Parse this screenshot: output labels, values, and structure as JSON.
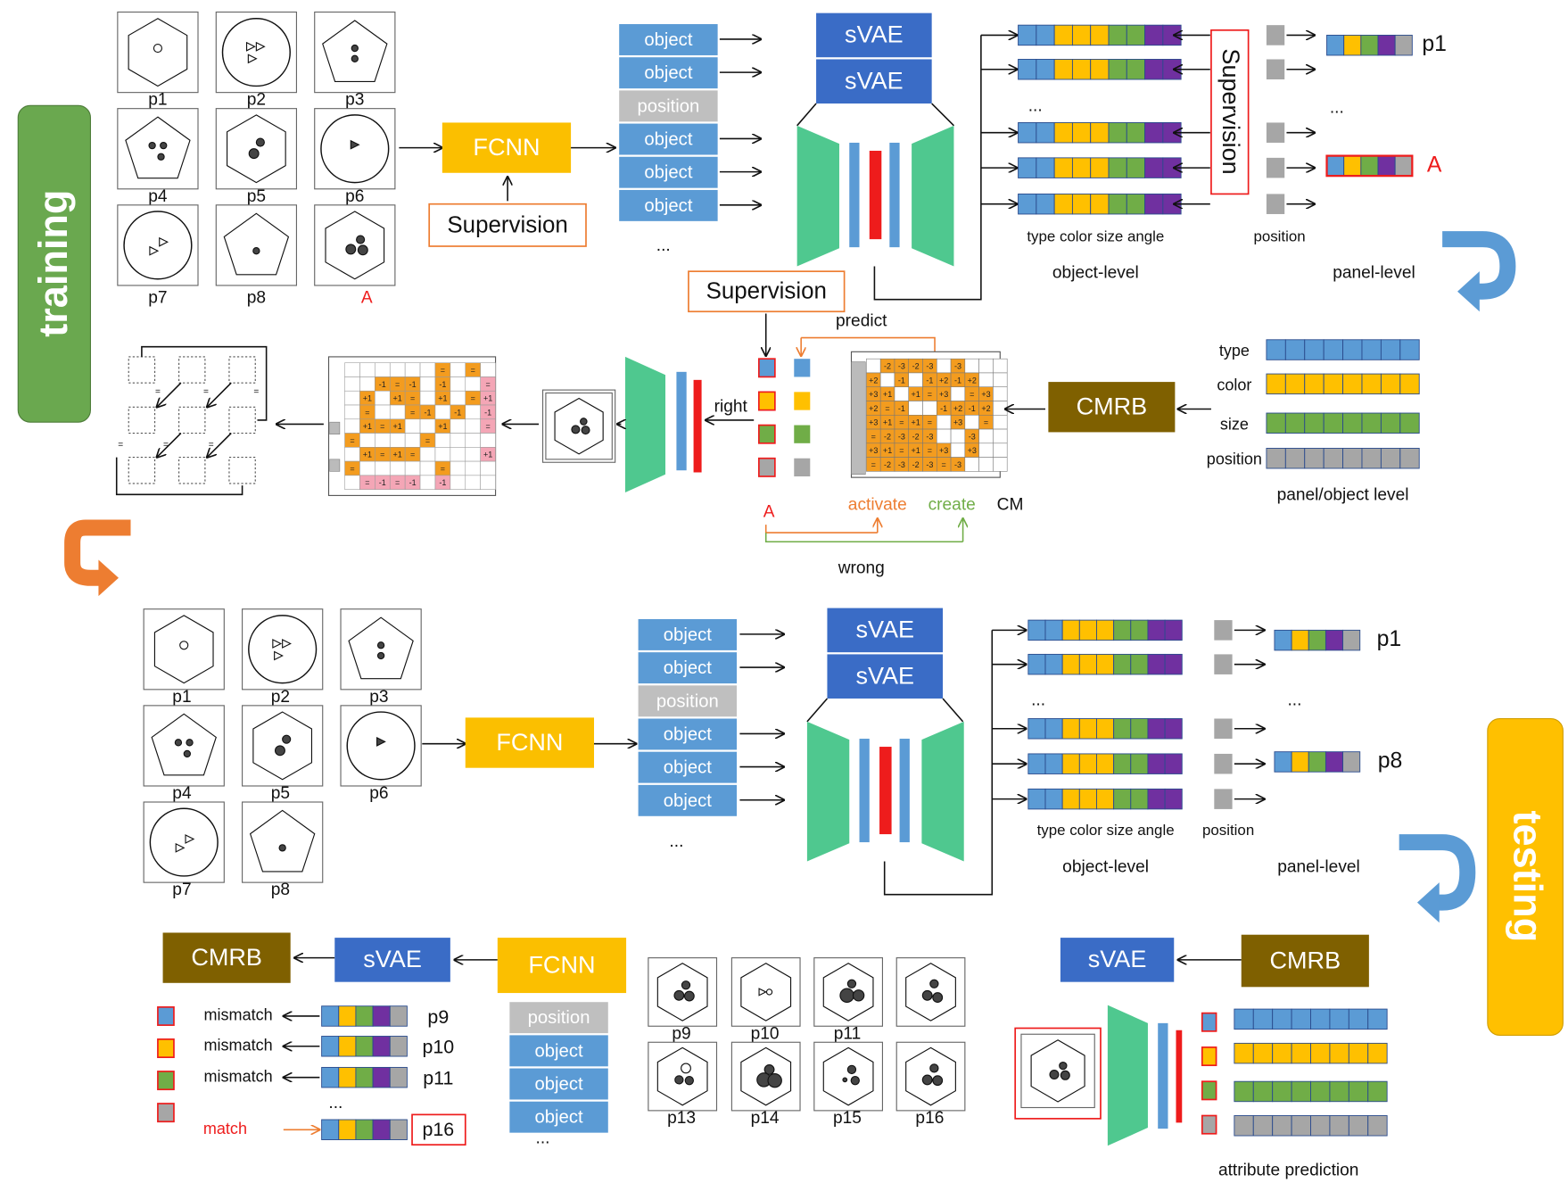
{
  "training": {
    "label": "training",
    "panels": [
      "p1",
      "p2",
      "p3",
      "p4",
      "p5",
      "p6",
      "p7",
      "p8",
      "A"
    ],
    "fcnn": "FCNN",
    "fcnn_supervision": "Supervision",
    "slots": [
      "object",
      "object",
      "position",
      "object",
      "object",
      "object"
    ],
    "slots_more": "...",
    "svae": [
      "sVAE",
      "sVAE"
    ],
    "vectors_more": "...",
    "vector_supervision": "Supervision",
    "panel_vectors": [
      "p1",
      "A"
    ],
    "panel_vectors_more": "...",
    "attribute_caption": "type color size angle",
    "position_caption": "position",
    "object_level": "object-level",
    "panel_level": "panel-level",
    "cm_supervision": "Supervision",
    "predict": "predict",
    "right": "right",
    "wrong": "wrong",
    "answer": "A",
    "activate": "activate",
    "create": "create",
    "cm": "CM",
    "cm_matrix": [
      [
        null,
        "-2",
        "-3",
        "-2",
        "-3",
        null,
        "-3",
        null,
        null,
        null
      ],
      [
        "+2",
        null,
        "-1",
        null,
        "-1",
        "+2",
        "-1",
        "+2",
        null,
        null
      ],
      [
        "+3",
        "+1",
        null,
        "+1",
        "=",
        "+3",
        null,
        "=",
        "+3",
        null
      ],
      [
        "+2",
        "=",
        "-1",
        null,
        null,
        "-1",
        "+2",
        "-1",
        "+2",
        null
      ],
      [
        "+3",
        "+1",
        "=",
        "+1",
        "=",
        null,
        "+3",
        null,
        "=",
        null
      ],
      [
        "=",
        "-2",
        "-3",
        "-2",
        "-3",
        null,
        null,
        "-3",
        null,
        null
      ],
      [
        "+3",
        "+1",
        "=",
        "+1",
        "=",
        "+3",
        null,
        "+3",
        null,
        null
      ],
      [
        "=",
        "-2",
        "-3",
        "-2",
        "-3",
        "=",
        "-3",
        null,
        null,
        null
      ]
    ],
    "rule_matrix": [
      [
        null,
        null,
        null,
        null,
        null,
        null,
        "=",
        null,
        "=",
        null
      ],
      [
        null,
        null,
        "-1",
        "=",
        "-1",
        null,
        "-1",
        null,
        null,
        "="
      ],
      [
        null,
        "+1",
        null,
        "+1",
        "=",
        null,
        "+1",
        null,
        "=",
        "+1"
      ],
      [
        null,
        "=",
        null,
        null,
        "=",
        "-1",
        null,
        "-1",
        null,
        "-1"
      ],
      [
        null,
        "+1",
        "=",
        "+1",
        null,
        null,
        "+1",
        null,
        null,
        "="
      ],
      [
        "=",
        null,
        null,
        null,
        null,
        "=",
        null,
        null,
        null,
        null
      ],
      [
        null,
        "+1",
        "=",
        "+1",
        "=",
        null,
        null,
        null,
        null,
        "+1"
      ],
      [
        "=",
        null,
        null,
        null,
        null,
        null,
        "=",
        null,
        null,
        null
      ],
      [
        null,
        "=",
        "-1",
        "=",
        "-1",
        null,
        "-1",
        null,
        null,
        null
      ]
    ],
    "rule_relations": [
      "=",
      "=",
      "=",
      "=",
      "=",
      "="
    ],
    "cmrb": "CMRB",
    "attributes": [
      "type",
      "color",
      "size",
      "position"
    ],
    "attributes_caption": "panel/object level"
  },
  "testing": {
    "label": "testing",
    "panels": [
      "p1",
      "p2",
      "p3",
      "p4",
      "p5",
      "p6",
      "p7",
      "p8"
    ],
    "fcnn": "FCNN",
    "slots": [
      "object",
      "object",
      "position",
      "object",
      "object",
      "object"
    ],
    "slots_more": "...",
    "svae": [
      "sVAE",
      "sVAE"
    ],
    "vectors_more": "...",
    "panel_vectors": [
      "p1",
      "p8"
    ],
    "panel_vectors_more": "...",
    "attribute_caption": "type color size angle",
    "position_caption": "position",
    "object_level": "object-level",
    "panel_level": "panel-level",
    "match": {
      "cmrb": "CMRB",
      "svae": "sVAE",
      "fcnn": "FCNN",
      "slots": [
        "position",
        "object",
        "object",
        "object"
      ],
      "slots_more": "...",
      "results": [
        "mismatch",
        "mismatch",
        "mismatch",
        "match"
      ],
      "candidates": [
        "p9",
        "p10",
        "p11",
        "p16"
      ],
      "candidates_more": "..."
    },
    "choices": [
      "p9",
      "p10",
      "p11",
      null,
      "p13",
      "p14",
      "p15",
      "p16"
    ],
    "prediction": {
      "svae": "sVAE",
      "cmrb": "CMRB",
      "caption": "attribute prediction"
    }
  }
}
